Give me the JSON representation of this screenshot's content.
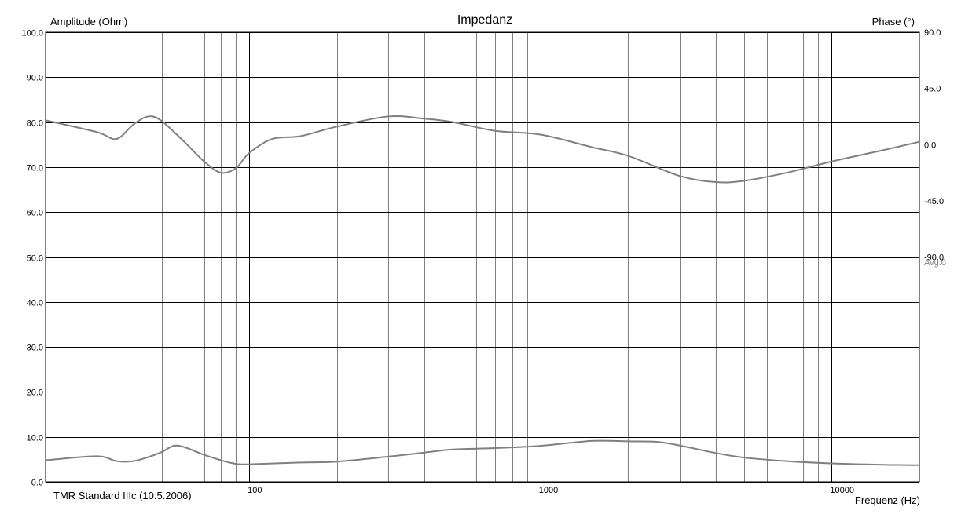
{
  "chart_data": {
    "type": "line",
    "title": "Impedanz",
    "xlabel": "Frequenz (Hz)",
    "ylabel_left": "Amplitude (Ohm)",
    "ylabel_right": "Phase (°)",
    "footer": "TMR Standard IIIc (10.5.2006)",
    "avg_label": "Avg:0",
    "x_scale": "log",
    "xlim": [
      20,
      20000
    ],
    "ylim_left": [
      0,
      100
    ],
    "ylim_right": [
      -270,
      90
    ],
    "x_tick_labels": [
      "100",
      "1000",
      "10000"
    ],
    "y_left_tick_labels": [
      "100.0",
      "90.0",
      "80.0",
      "70.0",
      "60.0",
      "50.0",
      "40.0",
      "30.0",
      "20.0",
      "10.0",
      "0.0"
    ],
    "y_right_tick_labels": [
      "90.0",
      "45.0",
      "0.0",
      "-45.0",
      "-90.0"
    ],
    "grid": true,
    "line_color": "#808080",
    "series": [
      {
        "axis": "left",
        "x": [
          20,
          30,
          35,
          40,
          45,
          50,
          55,
          60,
          70,
          80,
          90,
          100,
          150,
          200,
          300,
          400,
          500,
          700,
          1000,
          1500,
          2000,
          2500,
          3000,
          4000,
          5000,
          7000,
          10000,
          15000,
          20000
        ],
        "y": [
          4.8,
          5.7,
          4.6,
          4.6,
          5.5,
          6.6,
          8.0,
          7.7,
          6.0,
          4.8,
          4.0,
          3.9,
          4.3,
          4.5,
          5.6,
          6.5,
          7.2,
          7.5,
          8.0,
          9.1,
          9.0,
          8.9,
          8.1,
          6.4,
          5.4,
          4.6,
          4.1,
          3.8,
          3.7
        ]
      },
      {
        "axis": "right",
        "x": [
          20,
          30,
          35,
          40,
          45,
          50,
          60,
          70,
          80,
          90,
          100,
          120,
          150,
          200,
          300,
          400,
          500,
          700,
          1000,
          1500,
          2000,
          3000,
          4000,
          5000,
          7000,
          10000,
          15000,
          20000
        ],
        "y": [
          19.4,
          10,
          4.5,
          16,
          22.5,
          19,
          2,
          -13.5,
          -22.5,
          -18.9,
          -6.75,
          4.5,
          6.75,
          14.4,
          22.5,
          20.7,
          18,
          11,
          8,
          -2,
          -9,
          -25,
          -30,
          -29,
          -22.5,
          -13.5,
          -4.5,
          2.25
        ]
      }
    ]
  }
}
